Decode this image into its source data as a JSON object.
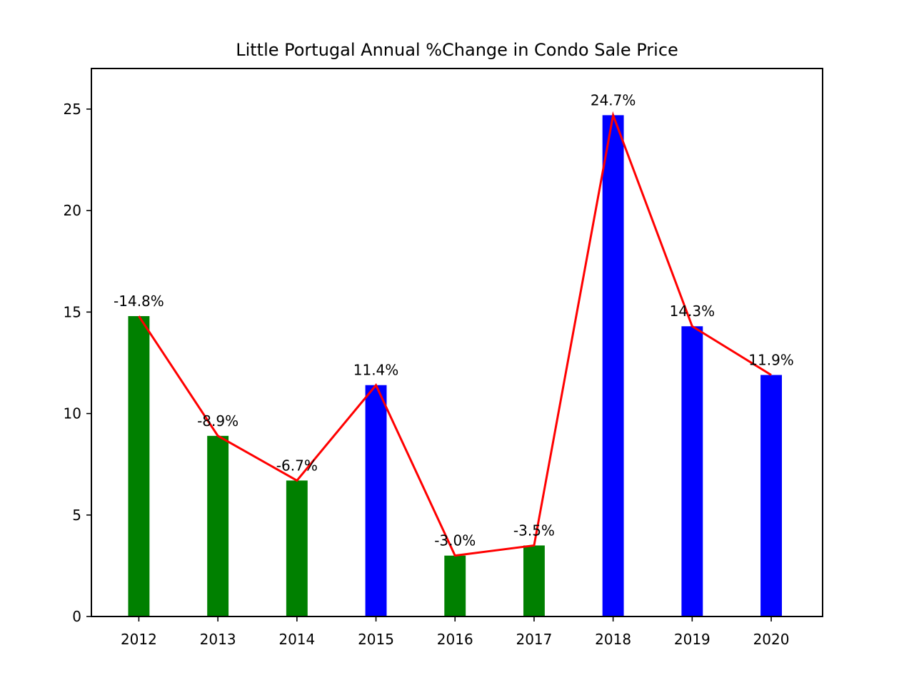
{
  "chart_data": {
    "type": "bar",
    "title": "Little Portugal Annual %Change in Condo Sale Price",
    "xlabel": "",
    "ylabel": "",
    "categories": [
      "2012",
      "2013",
      "2014",
      "2015",
      "2016",
      "2017",
      "2018",
      "2019",
      "2020"
    ],
    "values": [
      14.8,
      8.9,
      6.7,
      11.4,
      3.0,
      3.5,
      24.7,
      14.3,
      11.9
    ],
    "data_labels": [
      "-14.8%",
      "-8.9%",
      "-6.7%",
      "11.4%",
      "-3.0%",
      "-3.5%",
      "24.7%",
      "14.3%",
      "11.9%"
    ],
    "bar_colors": [
      "#008000",
      "#008000",
      "#008000",
      "#0000ff",
      "#008000",
      "#008000",
      "#0000ff",
      "#0000ff",
      "#0000ff"
    ],
    "line_overlay": {
      "values": [
        14.8,
        8.9,
        6.7,
        11.4,
        3.0,
        3.5,
        24.7,
        14.3,
        11.9
      ],
      "color": "#ff0000"
    },
    "ylim": [
      0,
      27
    ],
    "yticks": [
      0,
      5,
      10,
      15,
      20,
      25
    ],
    "grid": false,
    "legend": "none"
  }
}
